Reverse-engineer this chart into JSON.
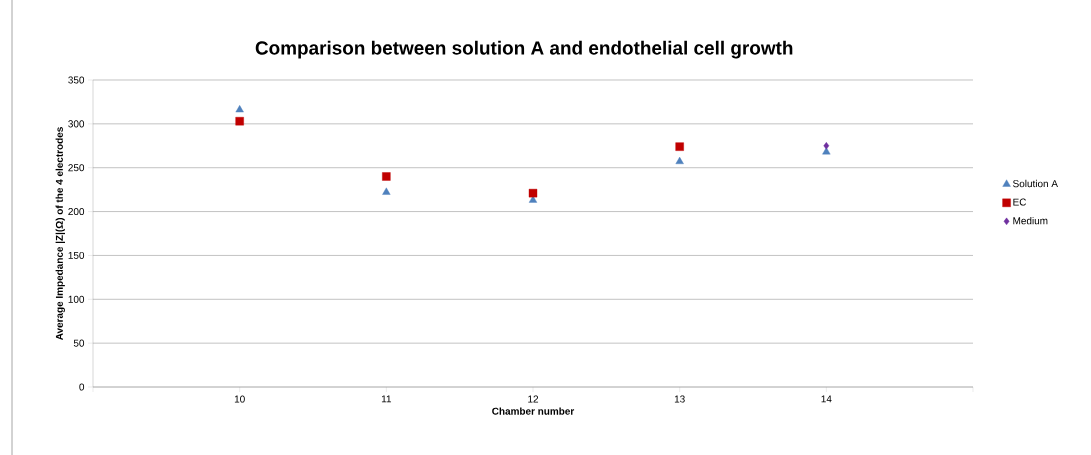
{
  "chart_data": {
    "type": "scatter",
    "title": "Comparison between solution A and endothelial cell growth",
    "xlabel": "Chamber number",
    "ylabel": "Average Impedance |Z|(Ω) of the 4 electrodes",
    "x": [
      10,
      11,
      12,
      13,
      14
    ],
    "series": [
      {
        "name": "Solution A",
        "color": "#4f81bd",
        "marker": "triangle",
        "values": [
          316,
          222,
          213,
          257,
          268
        ]
      },
      {
        "name": "EC",
        "color": "#c00000",
        "marker": "square",
        "values": [
          303,
          240,
          221,
          274,
          null
        ]
      },
      {
        "name": "Medium",
        "color": "#7030a0",
        "marker": "diamond",
        "values": [
          null,
          null,
          null,
          null,
          275
        ]
      }
    ],
    "xlim": [
      9,
      15
    ],
    "xticks": [
      {
        "value": 9,
        "label": null
      },
      10,
      11,
      12,
      13,
      14,
      {
        "value": 15,
        "label": null
      }
    ],
    "ylim": [
      0,
      350
    ],
    "yticks": [
      0,
      50,
      100,
      150,
      200,
      250,
      300,
      350
    ],
    "grid": "y",
    "legend": "right"
  }
}
